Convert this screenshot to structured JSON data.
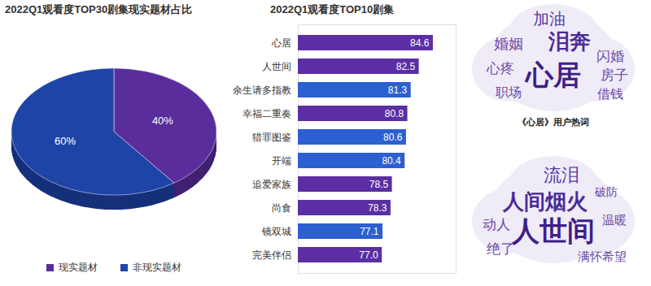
{
  "chart_data": [
    {
      "type": "pie",
      "title": "2022Q1观看度TOP30剧集现实题材占比",
      "categories": [
        "现实题材",
        "非现实题材"
      ],
      "values": [
        40,
        60
      ],
      "value_labels": [
        "40%",
        "60%"
      ],
      "colors": [
        "#5a2d9c",
        "#1f44a8"
      ],
      "data_labels": true,
      "legend": "bottom"
    },
    {
      "type": "bar",
      "title": "2022Q1观看度TOP10剧集",
      "orientation": "horizontal",
      "categories": [
        "心居",
        "人世间",
        "余生请多指教",
        "幸福二重奏",
        "猎罪图鉴",
        "开端",
        "追爱家族",
        "尚食",
        "镜双城",
        "完美伴侣"
      ],
      "values": [
        84.6,
        82.5,
        81.3,
        80.8,
        80.6,
        80.4,
        78.5,
        78.3,
        77.1,
        77.0
      ],
      "value_labels": [
        "84.6",
        "82.5",
        "81.3",
        "80.8",
        "80.6",
        "80.4",
        "78.5",
        "78.3",
        "77.1",
        "77.0"
      ],
      "colors": [
        "#5b2fa3",
        "#5b2fa3",
        "#2c5fcf",
        "#5b2fa3",
        "#2c5fcf",
        "#2c5fcf",
        "#5b2fa3",
        "#5b2fa3",
        "#2c5fcf",
        "#5b2fa3"
      ],
      "xlim": [
        64.5,
        88
      ],
      "data_labels": true,
      "tick_labels": "y"
    },
    {
      "type": "wordcloud",
      "title": "《心居》用户热词",
      "categories": [
        "心居",
        "泪奔",
        "加油",
        "婚姻",
        "闪婚",
        "房子",
        "借钱",
        "心疼",
        "职场"
      ],
      "values": [
        100,
        70,
        45,
        40,
        35,
        35,
        30,
        35,
        30
      ]
    },
    {
      "type": "wordcloud",
      "categories": [
        "人世间",
        "人间烟火",
        "流泪",
        "动人",
        "绝了",
        "满怀希望",
        "温暖",
        "破防"
      ],
      "values": [
        100,
        70,
        55,
        35,
        35,
        25,
        25,
        22
      ]
    }
  ]
}
